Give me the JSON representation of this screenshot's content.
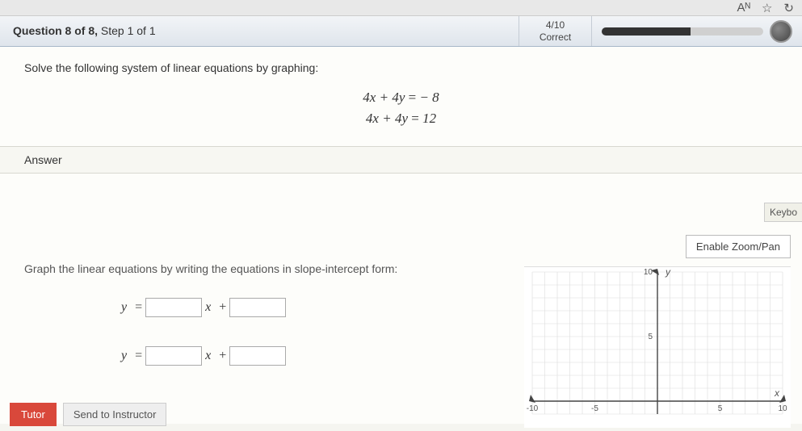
{
  "browser": {
    "readaloud_icon": "Aᴺ",
    "favorite_icon": "☆",
    "refresh_icon": "↻"
  },
  "header": {
    "question_label": "Question 8 of 8,",
    "step_label": "Step 1 of 1",
    "score_fraction": "4/10",
    "score_label": "Correct",
    "progress_percent": 55
  },
  "question": {
    "prompt": "Solve the following system of linear equations by graphing:",
    "eq1_lhs": "4x + 4y",
    "eq1_rhs": "− 8",
    "eq2_lhs": "4x + 4y",
    "eq2_rhs": "12"
  },
  "answer": {
    "section_label": "Answer",
    "keyboard_hint": "Keybo",
    "zoom_label": "Enable Zoom/Pan",
    "instruction": "Graph the linear equations by writing the equations in slope-intercept form:",
    "y_label": "y",
    "equals": " = ",
    "x_label": "x",
    "plus": " + "
  },
  "graph": {
    "xmin": -10,
    "xmax": 10,
    "ymin": -1,
    "ymax": 10,
    "xticks": [
      -10,
      -5,
      5,
      10
    ],
    "ytick_labels": {
      "5": "5",
      "10": "10"
    },
    "xtick_labels": {
      "-10": "-10",
      "-5": "-5",
      "5": "5",
      "10": "10"
    },
    "grid_color": "#dcdcdc",
    "axis_color": "#444",
    "y_axis_label": "y",
    "x_axis_label": "x"
  },
  "footer": {
    "tutor_label": "Tutor",
    "send_label": "Send to Instructor"
  }
}
